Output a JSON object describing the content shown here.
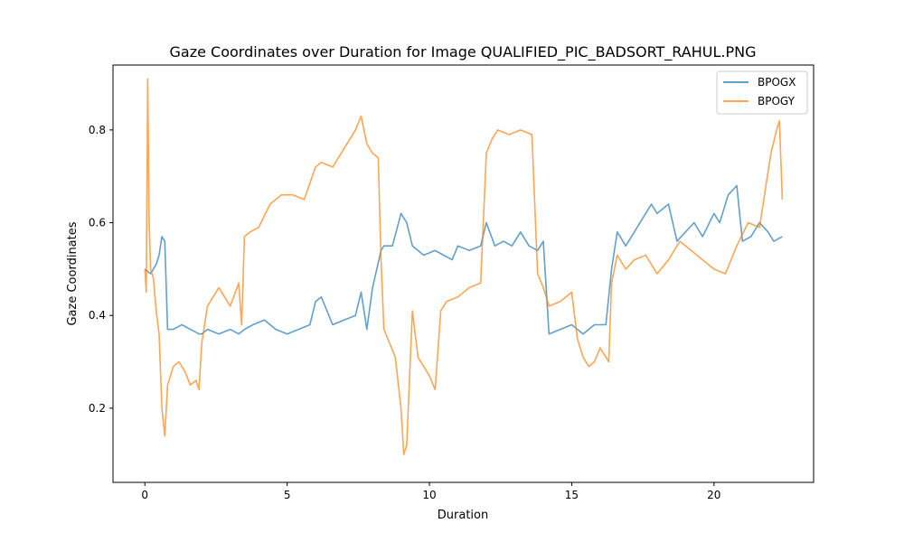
{
  "chart_data": {
    "type": "line",
    "title": "Gaze Coordinates over Duration for Image QUALIFIED_PIC_BADSORT_RAHUL.PNG",
    "xlabel": "Duration",
    "ylabel": "Gaze Coordinates",
    "xlim": [
      -1.12,
      23.5
    ],
    "ylim": [
      0.04,
      0.94
    ],
    "xticks": [
      0,
      5,
      10,
      15,
      20
    ],
    "yticks": [
      0.2,
      0.4,
      0.6,
      0.8
    ],
    "xtick_labels": [
      "0",
      "5",
      "10",
      "15",
      "20"
    ],
    "ytick_labels": [
      "0.2",
      "0.4",
      "0.6",
      "0.8"
    ],
    "grid": false,
    "legend_position": "top-right",
    "series": [
      {
        "name": "BPOGX",
        "color": "#1f77b4",
        "x": [
          0.0,
          0.2,
          0.4,
          0.5,
          0.6,
          0.7,
          0.8,
          1.0,
          1.3,
          1.6,
          1.9,
          2.0,
          2.2,
          2.6,
          3.0,
          3.3,
          3.5,
          3.8,
          4.2,
          4.6,
          5.0,
          5.4,
          5.8,
          6.0,
          6.2,
          6.6,
          7.0,
          7.4,
          7.6,
          7.8,
          8.0,
          8.3,
          8.4,
          8.7,
          9.0,
          9.2,
          9.4,
          9.8,
          10.2,
          10.5,
          10.8,
          11.0,
          11.4,
          11.8,
          12.0,
          12.3,
          12.6,
          12.9,
          13.2,
          13.5,
          13.8,
          14.0,
          14.2,
          14.6,
          15.0,
          15.4,
          15.8,
          16.2,
          16.4,
          16.6,
          16.9,
          17.2,
          17.5,
          17.8,
          18.0,
          18.4,
          18.7,
          19.0,
          19.3,
          19.6,
          20.0,
          20.2,
          20.5,
          20.8,
          21.0,
          21.3,
          21.6,
          21.9,
          22.1,
          22.4
        ],
        "values": [
          0.5,
          0.49,
          0.51,
          0.53,
          0.57,
          0.56,
          0.37,
          0.37,
          0.38,
          0.37,
          0.36,
          0.36,
          0.37,
          0.36,
          0.37,
          0.36,
          0.37,
          0.38,
          0.39,
          0.37,
          0.36,
          0.37,
          0.38,
          0.43,
          0.44,
          0.38,
          0.39,
          0.4,
          0.45,
          0.37,
          0.46,
          0.54,
          0.55,
          0.55,
          0.62,
          0.6,
          0.55,
          0.53,
          0.54,
          0.53,
          0.52,
          0.55,
          0.54,
          0.55,
          0.6,
          0.55,
          0.56,
          0.55,
          0.58,
          0.55,
          0.54,
          0.56,
          0.36,
          0.37,
          0.38,
          0.36,
          0.38,
          0.38,
          0.5,
          0.58,
          0.55,
          0.58,
          0.61,
          0.64,
          0.62,
          0.64,
          0.56,
          0.58,
          0.6,
          0.57,
          0.62,
          0.6,
          0.66,
          0.68,
          0.56,
          0.57,
          0.6,
          0.58,
          0.56,
          0.57
        ]
      },
      {
        "name": "BPOGY",
        "color": "#ff7f0e",
        "x": [
          0.0,
          0.05,
          0.1,
          0.15,
          0.2,
          0.3,
          0.4,
          0.5,
          0.6,
          0.7,
          0.8,
          0.9,
          1.0,
          1.2,
          1.4,
          1.6,
          1.8,
          1.9,
          2.0,
          2.2,
          2.6,
          3.0,
          3.3,
          3.4,
          3.5,
          3.7,
          4.0,
          4.4,
          4.8,
          5.2,
          5.6,
          6.0,
          6.2,
          6.6,
          7.0,
          7.4,
          7.6,
          7.8,
          8.0,
          8.2,
          8.3,
          8.4,
          8.6,
          8.8,
          9.0,
          9.1,
          9.2,
          9.4,
          9.6,
          10.0,
          10.2,
          10.4,
          10.6,
          11.0,
          11.4,
          11.8,
          12.0,
          12.2,
          12.4,
          12.8,
          13.2,
          13.6,
          13.8,
          14.0,
          14.2,
          14.6,
          15.0,
          15.2,
          15.4,
          15.6,
          15.8,
          16.0,
          16.3,
          16.4,
          16.6,
          16.9,
          17.2,
          17.6,
          18.0,
          18.4,
          18.8,
          19.2,
          19.6,
          20.0,
          20.4,
          20.8,
          21.2,
          21.6,
          22.0,
          22.2,
          22.3,
          22.4
        ],
        "values": [
          0.5,
          0.45,
          0.91,
          0.6,
          0.5,
          0.48,
          0.41,
          0.36,
          0.2,
          0.14,
          0.25,
          0.27,
          0.29,
          0.3,
          0.28,
          0.25,
          0.26,
          0.24,
          0.34,
          0.42,
          0.46,
          0.42,
          0.47,
          0.38,
          0.57,
          0.58,
          0.59,
          0.64,
          0.66,
          0.66,
          0.65,
          0.72,
          0.73,
          0.72,
          0.76,
          0.8,
          0.83,
          0.77,
          0.75,
          0.74,
          0.52,
          0.37,
          0.34,
          0.31,
          0.2,
          0.1,
          0.12,
          0.41,
          0.31,
          0.27,
          0.24,
          0.41,
          0.43,
          0.44,
          0.46,
          0.47,
          0.75,
          0.78,
          0.8,
          0.79,
          0.8,
          0.79,
          0.49,
          0.46,
          0.42,
          0.43,
          0.45,
          0.35,
          0.31,
          0.29,
          0.3,
          0.33,
          0.3,
          0.47,
          0.53,
          0.5,
          0.52,
          0.53,
          0.49,
          0.52,
          0.56,
          0.54,
          0.52,
          0.5,
          0.49,
          0.55,
          0.6,
          0.59,
          0.75,
          0.8,
          0.82,
          0.65
        ]
      }
    ]
  }
}
